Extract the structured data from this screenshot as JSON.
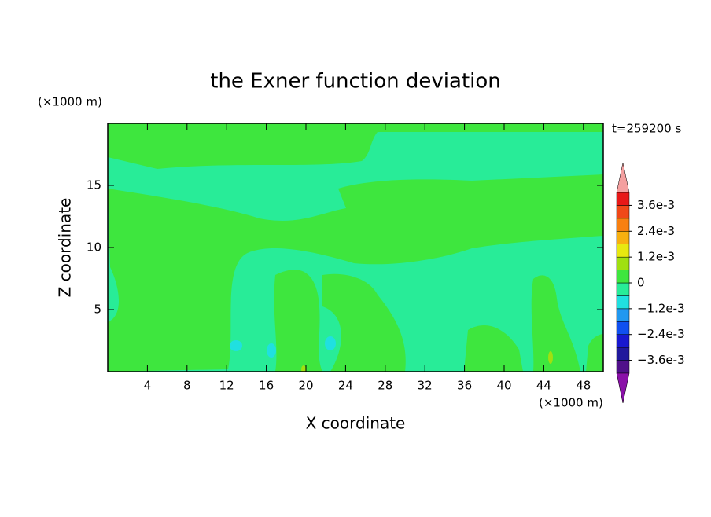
{
  "chart_data": {
    "type": "contour",
    "title": "the Exner function deviation",
    "xlabel": "X coordinate",
    "ylabel": "Z coordinate",
    "x_unit": "(×1000 m)",
    "y_unit": "(×1000 m)",
    "time_label": "t=259200 s",
    "xlim": [
      0,
      50
    ],
    "xticks": [
      4,
      8,
      12,
      16,
      20,
      24,
      28,
      32,
      36,
      40,
      44,
      48
    ],
    "ylim": [
      0,
      20
    ],
    "yticks": [
      5,
      10,
      15
    ],
    "colorbar": {
      "lim": [
        -0.0042,
        0.0042
      ],
      "colors": [
        "#50108a",
        "#20189c",
        "#1818d0",
        "#1050f0",
        "#2098f0",
        "#20e0e0",
        "#28ec98",
        "#3ee63e",
        "#a0e010",
        "#e8e810",
        "#f8b010",
        "#f88010",
        "#f04818",
        "#e81818"
      ],
      "extend_colors": [
        "#8a10a8",
        "#f4a0a0"
      ],
      "ticks": [
        {
          "value": 0.0036,
          "label": "3.6e-3"
        },
        {
          "value": 0.0024,
          "label": "2.4e-3"
        },
        {
          "value": 0.0012,
          "label": "1.2e-3"
        },
        0,
        {
          "value": -0.0012,
          "label": "−1.2e-3"
        },
        {
          "value": -0.0024,
          "label": "−2.4e-3"
        },
        {
          "value": -0.0036,
          "label": "−3.6e-3"
        }
      ]
    }
  }
}
